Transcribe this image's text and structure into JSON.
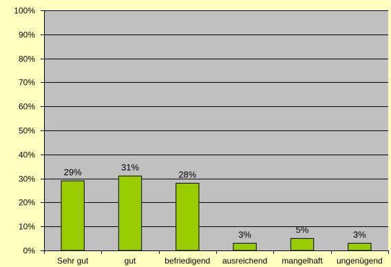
{
  "chart_data": {
    "type": "bar",
    "categories": [
      "Sehr gut",
      "gut",
      "befriedigend",
      "ausreichend",
      "mangelhaft",
      "ungenügend"
    ],
    "values": [
      29,
      31,
      28,
      3,
      5,
      3
    ],
    "data_labels": [
      "29%",
      "31%",
      "28%",
      "3%",
      "5%",
      "3%"
    ],
    "y_ticks": [
      "0%",
      "10%",
      "20%",
      "30%",
      "40%",
      "50%",
      "60%",
      "70%",
      "80%",
      "90%",
      "100%"
    ],
    "ylim": [
      0,
      100
    ],
    "grid": true,
    "legend": "none",
    "colors": {
      "background": "#ffffc0",
      "plot_area": "#c0c0c0",
      "bar_fill": "#99cc00",
      "bar_stroke": "#000000",
      "gridline": "#000000"
    }
  }
}
